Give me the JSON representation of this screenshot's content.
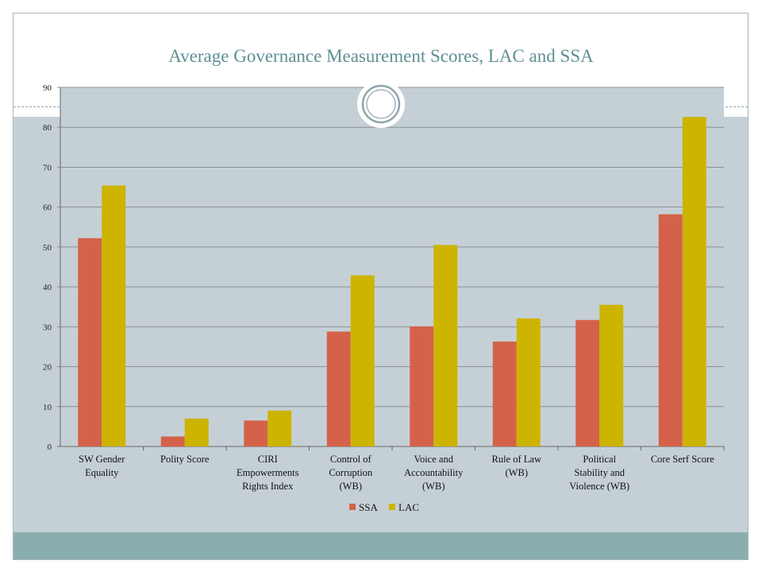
{
  "chart_data": {
    "type": "bar",
    "title": "Average Governance Measurement Scores, LAC and SSA",
    "categories": [
      [
        "SW Gender",
        "Equality"
      ],
      [
        "Polity Score"
      ],
      [
        "CIRI",
        "Empowerments",
        "Rights Index"
      ],
      [
        "Control of",
        "Corruption",
        "(WB)"
      ],
      [
        "Voice and",
        "Accountability",
        "(WB)"
      ],
      [
        "Rule of Law",
        "(WB)"
      ],
      [
        "Political",
        "Stability and",
        "Violence (WB)"
      ],
      [
        "Core Serf Score"
      ]
    ],
    "series": [
      {
        "name": "SSA",
        "color": "#d4624a",
        "values": [
          52.2,
          2.5,
          6.5,
          28.8,
          30.1,
          26.3,
          31.7,
          58.2
        ]
      },
      {
        "name": "LAC",
        "color": "#cdb400",
        "values": [
          65.4,
          7.0,
          9.0,
          42.9,
          50.5,
          32.1,
          35.5,
          82.6
        ]
      }
    ],
    "ylim": [
      0,
      90
    ],
    "yticks": [
      0,
      10,
      20,
      30,
      40,
      50,
      60,
      70,
      80,
      90
    ],
    "grid": true,
    "legend_position": "bottom"
  }
}
